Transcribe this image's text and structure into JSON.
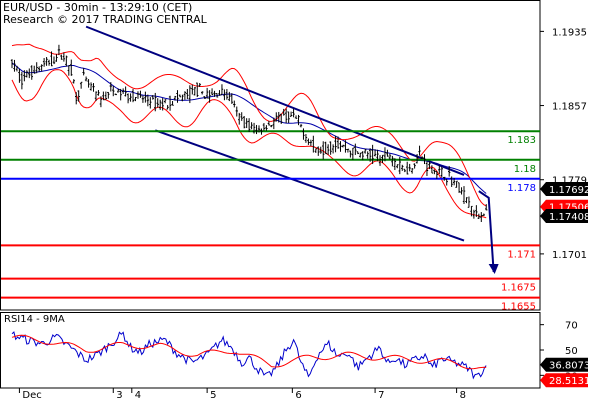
{
  "header": {
    "line1": "EUR/USD - 30min - 13:29:10 (CET)",
    "line2": "Research © 2017 TRADING CENTRAL"
  },
  "rsi_panel": {
    "label": "RSI14 - 9MA"
  },
  "colors": {
    "price": "#000000",
    "ma_fast": "#ff0000",
    "ma_slow": "#0000aa",
    "channel": "#000080",
    "support": "#ff0000",
    "resistance": "#008000",
    "pivot": "#0000ff",
    "rsi": "#0000cc",
    "rsi_ma": "#ff0000",
    "tag_dark": "#000000",
    "tag_red": "#ff0000"
  },
  "chart_data": [
    {
      "type": "candlestick",
      "title": "EUR/USD - 30min",
      "x_tick_labels": [
        "Dec",
        "3",
        "4",
        "5",
        "6",
        "7",
        "8"
      ],
      "xlim": [
        0,
        400
      ],
      "ylim": [
        1.1642,
        1.1968
      ],
      "y_ticks": [
        1.1935,
        1.1857,
        1.1779,
        1.1701
      ],
      "price_path": [
        [
          0,
          1.1902
        ],
        [
          8,
          1.1885
        ],
        [
          16,
          1.1893
        ],
        [
          24,
          1.1898
        ],
        [
          32,
          1.1904
        ],
        [
          40,
          1.1912
        ],
        [
          48,
          1.1895
        ],
        [
          52,
          1.1866
        ],
        [
          58,
          1.1885
        ],
        [
          64,
          1.1876
        ],
        [
          72,
          1.1862
        ],
        [
          80,
          1.1872
        ],
        [
          90,
          1.187
        ],
        [
          100,
          1.1866
        ],
        [
          110,
          1.1863
        ],
        [
          120,
          1.1858
        ],
        [
          130,
          1.1862
        ],
        [
          140,
          1.1867
        ],
        [
          150,
          1.1874
        ],
        [
          160,
          1.1866
        ],
        [
          170,
          1.1872
        ],
        [
          178,
          1.1863
        ],
        [
          182,
          1.1847
        ],
        [
          190,
          1.1838
        ],
        [
          198,
          1.183
        ],
        [
          206,
          1.1836
        ],
        [
          214,
          1.1841
        ],
        [
          222,
          1.1846
        ],
        [
          230,
          1.1843
        ],
        [
          238,
          1.1826
        ],
        [
          246,
          1.181
        ],
        [
          254,
          1.1812
        ],
        [
          262,
          1.1818
        ],
        [
          270,
          1.1812
        ],
        [
          280,
          1.1807
        ],
        [
          290,
          1.1805
        ],
        [
          300,
          1.1802
        ],
        [
          306,
          1.1806
        ],
        [
          314,
          1.1792
        ],
        [
          322,
          1.179
        ],
        [
          330,
          1.1806
        ],
        [
          338,
          1.1792
        ],
        [
          346,
          1.1786
        ],
        [
          354,
          1.1782
        ],
        [
          362,
          1.177
        ],
        [
          370,
          1.1755
        ],
        [
          374,
          1.1744
        ],
        [
          378,
          1.174
        ],
        [
          382,
          1.1745
        ]
      ],
      "channel_upper": [
        [
          60,
          1.194
        ],
        [
          366,
          1.1784
        ]
      ],
      "channel_lower": [
        [
          116,
          1.1831
        ],
        [
          366,
          1.1715
        ]
      ],
      "support_levels": [
        1.171,
        1.1675,
        1.1655
      ],
      "resistance_levels": [
        1.183,
        1.18
      ],
      "pivot_level": 1.178,
      "level_labels": [
        "1.183",
        "1.18",
        "1.178",
        "1.171",
        "1.1675",
        "1.1655"
      ],
      "forecast_arrow": [
        [
          378,
          1.1767
        ],
        [
          386,
          1.176
        ],
        [
          390,
          1.1682
        ]
      ],
      "tags": [
        {
          "value": "1.17692",
          "style": "dark"
        },
        {
          "value": "1.17506",
          "style": "red"
        },
        {
          "value": "1.17408",
          "style": "dark"
        }
      ]
    },
    {
      "type": "line",
      "title": "RSI14 - 9MA",
      "ylim": [
        20,
        80
      ],
      "y_ticks": [
        70,
        50,
        30
      ],
      "rsi_series": [
        [
          0,
          62
        ],
        [
          12,
          58
        ],
        [
          24,
          55
        ],
        [
          36,
          60
        ],
        [
          50,
          50
        ],
        [
          60,
          42
        ],
        [
          70,
          47
        ],
        [
          80,
          55
        ],
        [
          90,
          63
        ],
        [
          96,
          52
        ],
        [
          104,
          48
        ],
        [
          112,
          55
        ],
        [
          124,
          58
        ],
        [
          134,
          47
        ],
        [
          146,
          40
        ],
        [
          158,
          46
        ],
        [
          170,
          58
        ],
        [
          178,
          52
        ],
        [
          186,
          40
        ],
        [
          192,
          44
        ],
        [
          198,
          36
        ],
        [
          206,
          28
        ],
        [
          214,
          36
        ],
        [
          222,
          50
        ],
        [
          228,
          58
        ],
        [
          234,
          40
        ],
        [
          240,
          28
        ],
        [
          248,
          47
        ],
        [
          256,
          55
        ],
        [
          264,
          45
        ],
        [
          272,
          48
        ],
        [
          280,
          36
        ],
        [
          288,
          44
        ],
        [
          298,
          52
        ],
        [
          304,
          39
        ],
        [
          310,
          44
        ],
        [
          318,
          38
        ],
        [
          326,
          42
        ],
        [
          334,
          46
        ],
        [
          340,
          36
        ],
        [
          348,
          43
        ],
        [
          356,
          41
        ],
        [
          364,
          38
        ],
        [
          370,
          35
        ],
        [
          376,
          28
        ],
        [
          380,
          33
        ],
        [
          384,
          37
        ]
      ],
      "rsi_ma_series": [
        [
          0,
          60
        ],
        [
          30,
          57
        ],
        [
          60,
          50
        ],
        [
          90,
          54
        ],
        [
          120,
          53
        ],
        [
          150,
          46
        ],
        [
          180,
          50
        ],
        [
          210,
          38
        ],
        [
          240,
          44
        ],
        [
          270,
          46
        ],
        [
          300,
          44
        ],
        [
          330,
          42
        ],
        [
          360,
          40
        ],
        [
          384,
          34
        ]
      ],
      "tags": [
        {
          "value": "36.8073",
          "style": "dark"
        },
        {
          "value": "28.5131",
          "style": "red"
        }
      ]
    }
  ]
}
